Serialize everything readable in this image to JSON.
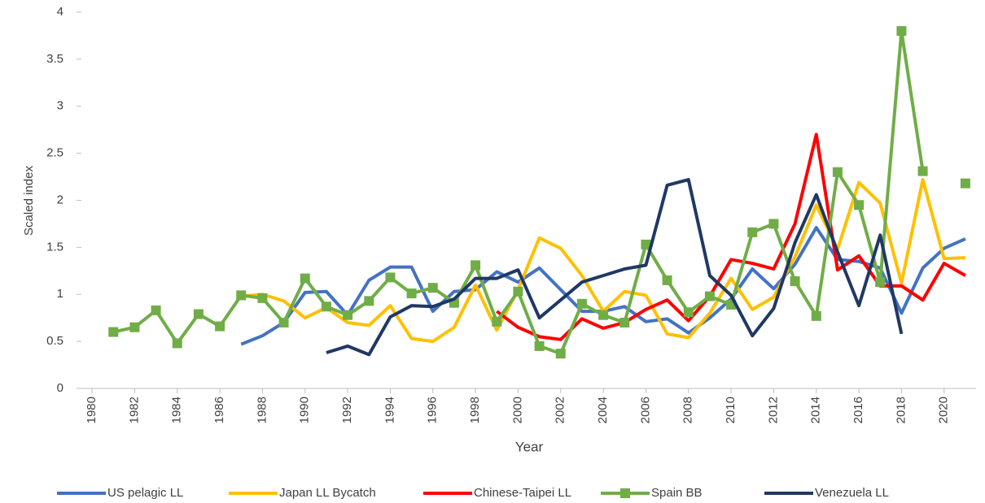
{
  "chart_data": {
    "type": "line",
    "x_label": "Year",
    "y_label": "Scaled index",
    "x": [
      1980,
      1981,
      1982,
      1983,
      1984,
      1985,
      1986,
      1987,
      1988,
      1989,
      1990,
      1991,
      1992,
      1993,
      1994,
      1995,
      1996,
      1997,
      1998,
      1999,
      2000,
      2001,
      2002,
      2003,
      2004,
      2005,
      2006,
      2007,
      2008,
      2009,
      2010,
      2011,
      2012,
      2013,
      2014,
      2015,
      2016,
      2017,
      2018,
      2019,
      2020,
      2021
    ],
    "xlim": [
      1979.5,
      2021.5
    ],
    "xticks": [
      1980,
      1982,
      1984,
      1986,
      1988,
      1990,
      1992,
      1994,
      1996,
      1998,
      2000,
      2002,
      2004,
      2006,
      2008,
      2010,
      2012,
      2014,
      2016,
      2018,
      2020
    ],
    "ylim": [
      0,
      4
    ],
    "yticks": [
      0,
      0.5,
      1,
      1.5,
      2,
      2.5,
      3,
      3.5,
      4
    ],
    "grid": false,
    "legend": "bottom",
    "series": [
      {
        "name": "US pelagic LL",
        "color": "#4472c4",
        "marker": false,
        "values": [
          null,
          null,
          null,
          null,
          null,
          null,
          null,
          0.47,
          0.56,
          0.7,
          1.02,
          1.03,
          0.78,
          1.15,
          1.29,
          1.29,
          0.82,
          1.03,
          1.05,
          1.24,
          1.13,
          1.28,
          1.05,
          0.82,
          0.82,
          0.87,
          0.71,
          0.74,
          0.59,
          0.75,
          0.95,
          1.27,
          1.06,
          1.32,
          1.71,
          1.37,
          1.35,
          1.28,
          0.8,
          1.28,
          1.49,
          1.59
        ]
      },
      {
        "name": "Japan LL Bycatch",
        "color": "#ffc000",
        "marker": false,
        "values": [
          null,
          null,
          null,
          null,
          null,
          null,
          null,
          0.98,
          1.0,
          0.93,
          0.75,
          0.86,
          0.7,
          0.67,
          0.88,
          0.53,
          0.5,
          0.65,
          1.1,
          0.62,
          1.05,
          1.6,
          1.49,
          1.2,
          0.82,
          1.03,
          0.99,
          0.58,
          0.54,
          0.8,
          1.17,
          0.84,
          0.97,
          1.4,
          1.95,
          1.48,
          2.19,
          1.97,
          1.12,
          2.22,
          1.38,
          1.39
        ]
      },
      {
        "name": "Chinese-Taipei LL",
        "color": "#ff0000",
        "marker": false,
        "values": [
          null,
          null,
          null,
          null,
          null,
          null,
          null,
          null,
          null,
          null,
          null,
          null,
          null,
          null,
          null,
          null,
          null,
          null,
          null,
          0.82,
          0.65,
          0.55,
          0.52,
          0.74,
          0.64,
          0.7,
          0.84,
          0.94,
          0.72,
          0.98,
          1.37,
          1.33,
          1.27,
          1.75,
          2.7,
          1.26,
          1.41,
          1.09,
          1.09,
          0.94,
          1.33,
          1.2
        ]
      },
      {
        "name": "Spain BB",
        "color": "#70ad47",
        "marker": true,
        "values": [
          null,
          0.6,
          0.65,
          0.83,
          0.48,
          0.79,
          0.66,
          0.99,
          0.96,
          0.7,
          1.17,
          0.87,
          0.78,
          0.93,
          1.18,
          1.01,
          1.07,
          0.91,
          1.31,
          0.71,
          1.03,
          0.45,
          0.37,
          0.9,
          0.78,
          0.7,
          1.53,
          1.15,
          0.81,
          0.98,
          0.89,
          1.66,
          1.75,
          1.14,
          0.77,
          2.3,
          1.95,
          1.13,
          3.8,
          2.31,
          null,
          2.18
        ]
      },
      {
        "name": "Venezuela LL",
        "color": "#203864",
        "marker": false,
        "values": [
          null,
          null,
          null,
          null,
          null,
          null,
          null,
          null,
          null,
          null,
          null,
          0.38,
          0.45,
          0.36,
          0.76,
          0.88,
          0.87,
          0.95,
          1.17,
          1.17,
          1.26,
          0.75,
          0.94,
          1.13,
          1.2,
          1.27,
          1.31,
          2.16,
          2.22,
          1.2,
          0.99,
          0.56,
          0.85,
          1.55,
          2.06,
          1.45,
          0.88,
          1.63,
          0.58,
          null,
          null,
          null
        ]
      }
    ]
  }
}
